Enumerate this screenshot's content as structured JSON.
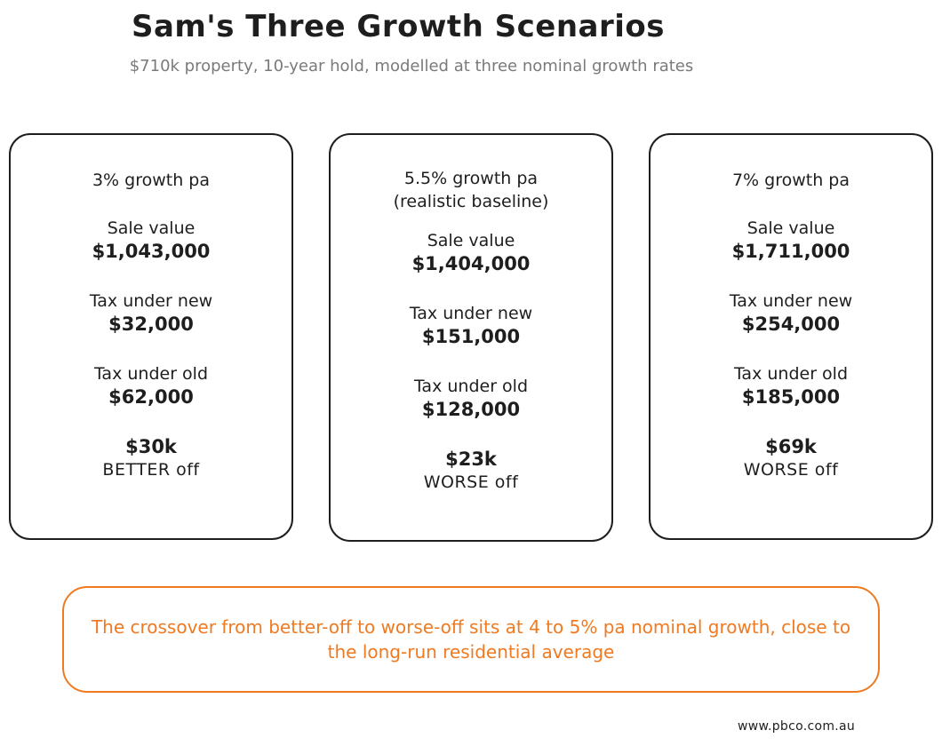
{
  "title": "Sam's Three Growth Scenarios",
  "subtitle": "$710k property, 10-year hold, modelled at three nominal growth rates",
  "scenarios": [
    {
      "heading": "3% growth pa",
      "heading_line2": "",
      "sale_label": "Sale value",
      "sale_value": "$1,043,000",
      "tax_new_label": "Tax under new",
      "tax_new_value": "$32,000",
      "tax_old_label": "Tax under old",
      "tax_old_value": "$62,000",
      "result_value": "$30k",
      "result_label": "BETTER off"
    },
    {
      "heading": "5.5% growth pa",
      "heading_line2": "(realistic baseline)",
      "sale_label": "Sale value",
      "sale_value": "$1,404,000",
      "tax_new_label": "Tax under new",
      "tax_new_value": "$151,000",
      "tax_old_label": "Tax under old",
      "tax_old_value": "$128,000",
      "result_value": "$23k",
      "result_label": "WORSE off"
    },
    {
      "heading": "7% growth pa",
      "heading_line2": "",
      "sale_label": "Sale value",
      "sale_value": "$1,711,000",
      "tax_new_label": "Tax under new",
      "tax_new_value": "$254,000",
      "tax_old_label": "Tax under old",
      "tax_old_value": "$185,000",
      "result_value": "$69k",
      "result_label": "WORSE off"
    }
  ],
  "callout": {
    "text": "The crossover from better-off to worse-off sits at 4 to 5% pa nominal growth, close to the long-run residential average",
    "color": "#f07a22"
  },
  "footer": "www.pbco.com.au"
}
